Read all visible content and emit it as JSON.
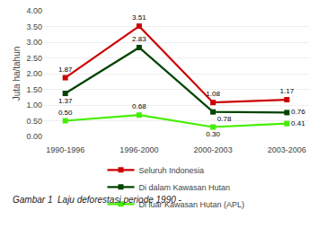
{
  "chart_data": {
    "type": "line",
    "categories": [
      "1990-1996",
      "1996-2000",
      "2000-2003",
      "2003-2006"
    ],
    "series": [
      {
        "name": "Seluruh Indonesia",
        "color": "#cc0000",
        "marker": "square",
        "values": [
          1.87,
          3.51,
          1.08,
          1.17
        ],
        "value_labels": [
          "1.87",
          "3.51",
          "1.08",
          "1.17"
        ]
      },
      {
        "name": "Di dalam Kawasan Hutan",
        "color": "#004400",
        "marker": "square",
        "values": [
          1.37,
          2.83,
          0.78,
          0.76
        ],
        "value_labels": [
          "1.37",
          "2.83",
          "0.78",
          "0.76"
        ]
      },
      {
        "name": "Di luar Kawasan Hutan (APL)",
        "color": "#44ee00",
        "marker": "square",
        "values": [
          0.5,
          0.68,
          0.3,
          0.41
        ],
        "value_labels": [
          "0.50",
          "0.68",
          "0.30",
          "0.41"
        ]
      }
    ],
    "ylabel": "Juta ha/tahun",
    "ylim": [
      0.0,
      4.0
    ],
    "yticks": [
      {
        "value": 0,
        "label": "0.00"
      },
      {
        "value": 0.5,
        "label": "0.50"
      },
      {
        "value": 1,
        "label": "1.00"
      },
      {
        "value": 1.5,
        "label": "1.50"
      },
      {
        "value": 2,
        "label": "2.00"
      },
      {
        "value": 2.5,
        "label": "2.50"
      },
      {
        "value": 3,
        "label": "3.00"
      },
      {
        "value": 3.5,
        "label": "3.50"
      },
      {
        "value": 4,
        "label": "4.00"
      }
    ],
    "grid": true,
    "legend": "bottom",
    "data_labels": true,
    "annotations": [
      "Gambar 1  Laju deforestasi periode 1990 -"
    ]
  }
}
